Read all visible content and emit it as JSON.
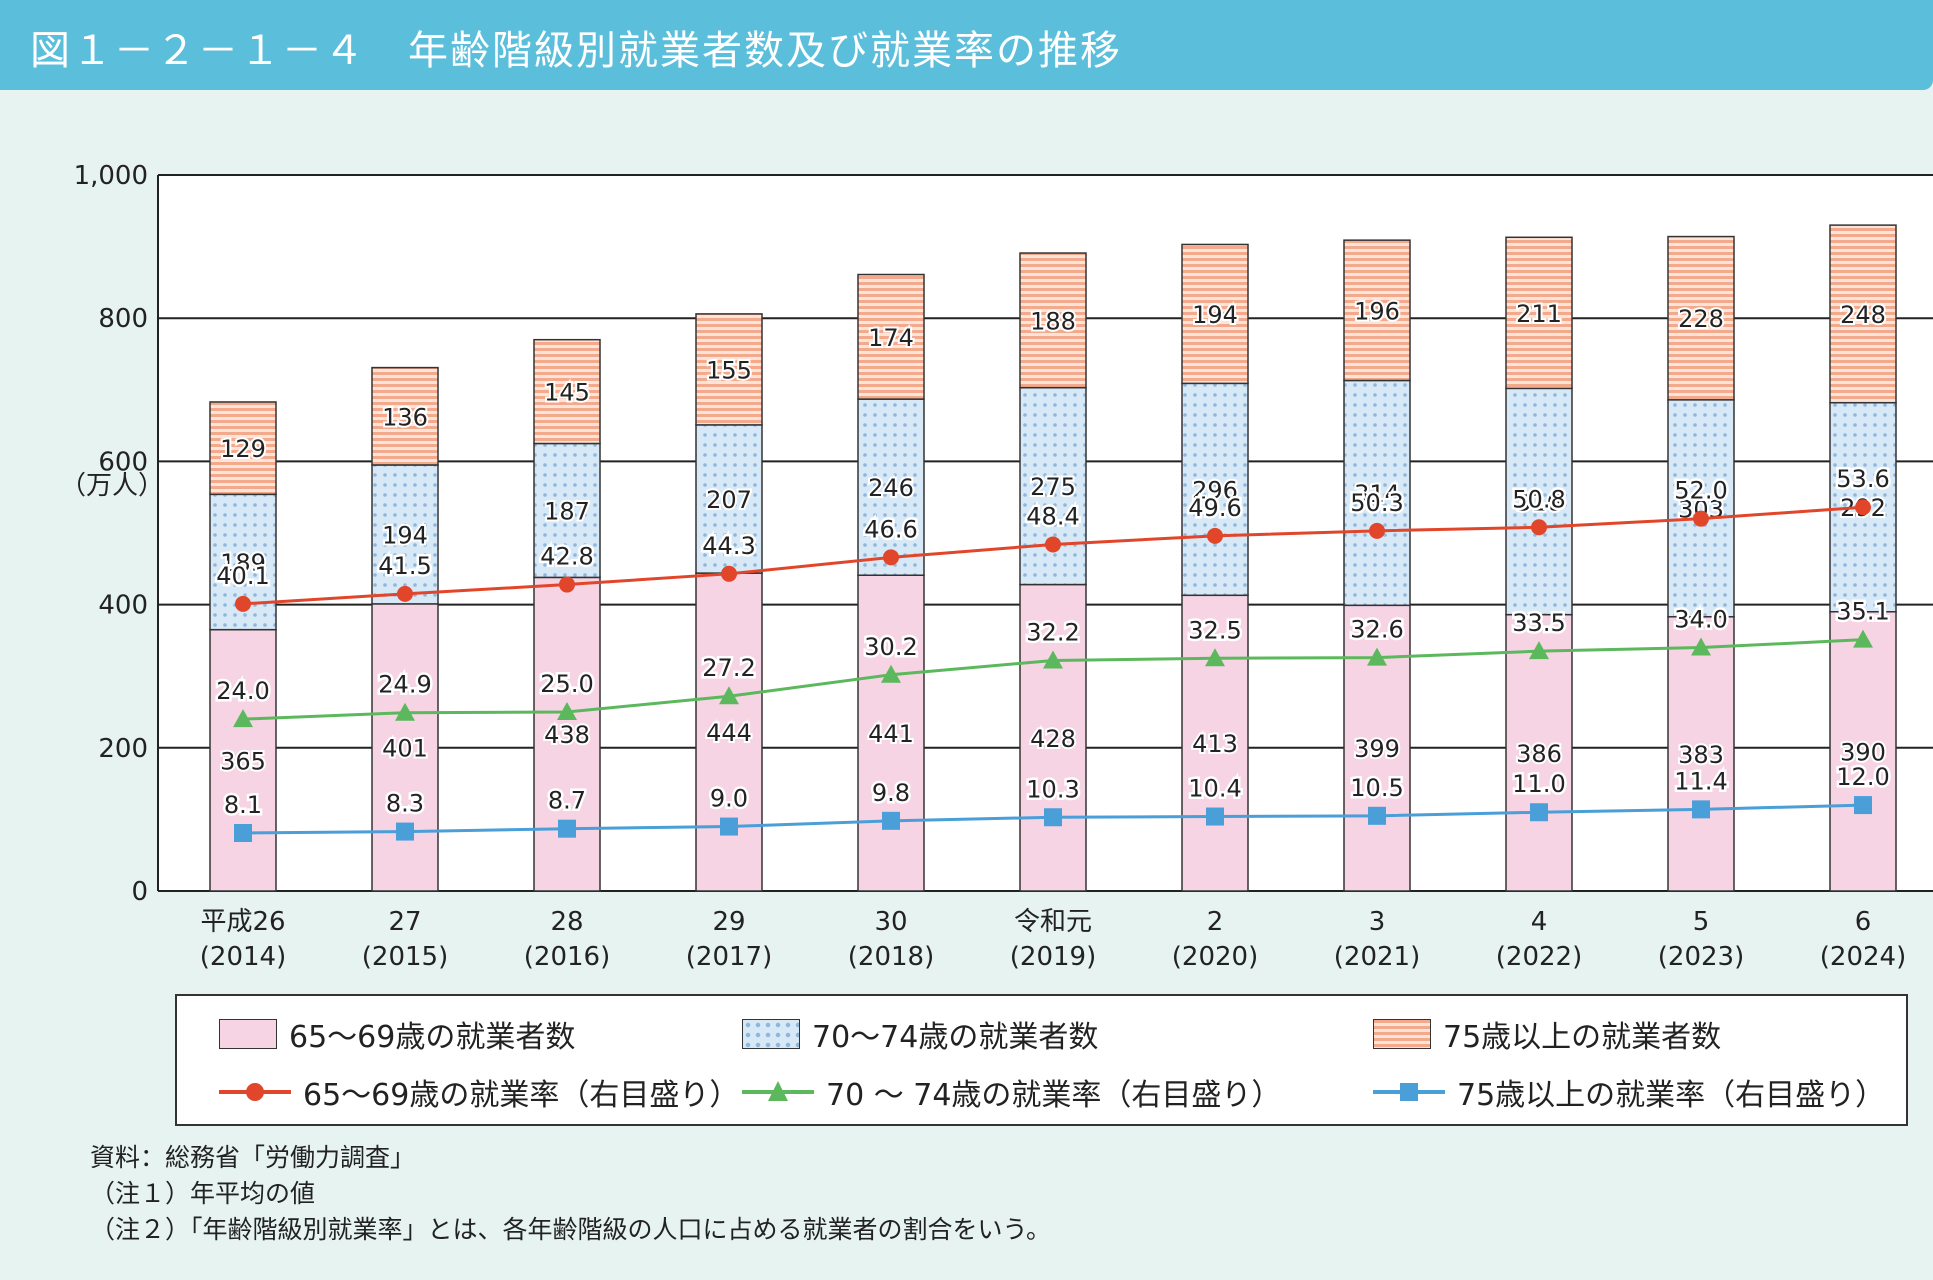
{
  "header": {
    "title": "図１－２－１－４　年齢階級別就業者数及び就業率の推移"
  },
  "chart_data": {
    "type": "bar",
    "title": "年齢階級別就業者数及び就業率の推移",
    "ylabel": "（万人）",
    "ylim": [
      0,
      1000
    ],
    "y_ticks": [
      "0",
      "200",
      "400",
      "600",
      "800",
      "1,000"
    ],
    "categories": [
      {
        "era": "平成26",
        "year": "(2014)"
      },
      {
        "era": "27",
        "year": "(2015)"
      },
      {
        "era": "28",
        "year": "(2016)"
      },
      {
        "era": "29",
        "year": "(2017)"
      },
      {
        "era": "30",
        "year": "(2018)"
      },
      {
        "era": "令和元",
        "year": "(2019)"
      },
      {
        "era": "2",
        "year": "(2020)"
      },
      {
        "era": "3",
        "year": "(2021)"
      },
      {
        "era": "4",
        "year": "(2022)"
      },
      {
        "era": "5",
        "year": "(2023)"
      },
      {
        "era": "6",
        "year": "(2024)"
      }
    ],
    "bar_series": [
      {
        "name": "65～69歳の就業者数",
        "values": [
          365,
          401,
          438,
          444,
          441,
          428,
          413,
          399,
          386,
          383,
          390
        ],
        "color": "#f6d4e4"
      },
      {
        "name": "70～74歳の就業者数",
        "values": [
          189,
          194,
          187,
          207,
          246,
          275,
          296,
          314,
          316,
          303,
          292
        ],
        "color": "#d7e8f6"
      },
      {
        "name": "75歳以上の就業者数",
        "values": [
          129,
          136,
          145,
          155,
          174,
          188,
          194,
          196,
          211,
          228,
          248
        ],
        "color": "#f3a98c"
      }
    ],
    "line_series": [
      {
        "name": "65～69歳の就業率（右目盛り）",
        "values": [
          40.1,
          41.5,
          42.8,
          44.3,
          46.6,
          48.4,
          49.6,
          50.3,
          50.8,
          52.0,
          53.6
        ],
        "labels": [
          "40.1",
          "41.5",
          "42.8",
          "44.3",
          "46.6",
          "48.4",
          "49.6",
          "50.3",
          "50.8",
          "52.0",
          "53.6"
        ],
        "color": "#e2462a",
        "marker": "circle"
      },
      {
        "name": "70 ～ 74歳の就業率（右目盛り）",
        "values": [
          24.0,
          24.9,
          25.0,
          27.2,
          30.2,
          32.2,
          32.5,
          32.6,
          33.5,
          34.0,
          35.1
        ],
        "labels": [
          "24.0",
          "24.9",
          "25.0",
          "27.2",
          "30.2",
          "32.2",
          "32.5",
          "32.6",
          "33.5",
          "34.0",
          "35.1"
        ],
        "color": "#5cb85c",
        "marker": "triangle"
      },
      {
        "name": "75歳以上の就業率（右目盛り）",
        "values": [
          8.1,
          8.3,
          8.7,
          9.0,
          9.8,
          10.3,
          10.4,
          10.5,
          11.0,
          11.4,
          12.0
        ],
        "labels": [
          "8.1",
          "8.3",
          "8.7",
          "9.0",
          "9.8",
          "10.3",
          "10.4",
          "10.5",
          "11.0",
          "11.4",
          "12.0"
        ],
        "color": "#4a9fd8",
        "marker": "square"
      }
    ],
    "legend_position": "bottom",
    "grid": true
  },
  "notes": {
    "source": "資料：総務省「労働力調査」",
    "note1": "（注１）年平均の値",
    "note2": "（注２）「年齢階級別就業率」とは、各年齢階級の人口に占める就業者の割合をいう。"
  }
}
